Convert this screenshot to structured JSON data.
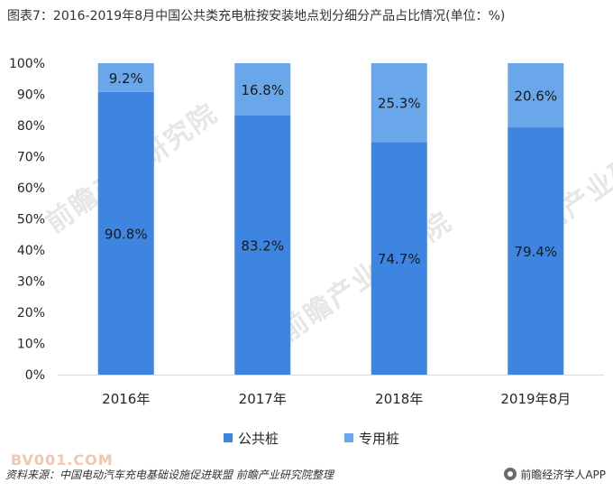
{
  "title": "图表7：2016-2019年8月中国公共类充电桩按安装地点划分细分产品占比情况(单位：%)",
  "source": "资料来源：中国电动汽车充电基础设施促进联盟 前瞻产业研究院整理",
  "brand": "前瞻经济学人APP",
  "watermark": "前瞻产业研究院",
  "watermark_site": "BV001.COM",
  "colors": {
    "public": "#3d85e0",
    "dedicated": "#6aa7ea",
    "axis": "#d9d9d9",
    "text": "#262626"
  },
  "chart_data": {
    "type": "bar",
    "stacked": true,
    "categories": [
      "2016年",
      "2017年",
      "2018年",
      "2019年8月"
    ],
    "series": [
      {
        "name": "公共桩",
        "values": [
          90.8,
          83.2,
          74.7,
          79.4
        ],
        "labels": [
          "90.8%",
          "83.2%",
          "74.7%",
          "79.4%"
        ]
      },
      {
        "name": "专用桩",
        "values": [
          9.2,
          16.8,
          25.3,
          20.6
        ],
        "labels": [
          "9.2%",
          "16.8%",
          "25.3%",
          "20.6%"
        ]
      }
    ],
    "ylim": [
      0,
      100
    ],
    "yticks": [
      "0%",
      "10%",
      "20%",
      "30%",
      "40%",
      "50%",
      "60%",
      "70%",
      "80%",
      "90%",
      "100%"
    ],
    "legend_position": "bottom",
    "grid": false
  }
}
